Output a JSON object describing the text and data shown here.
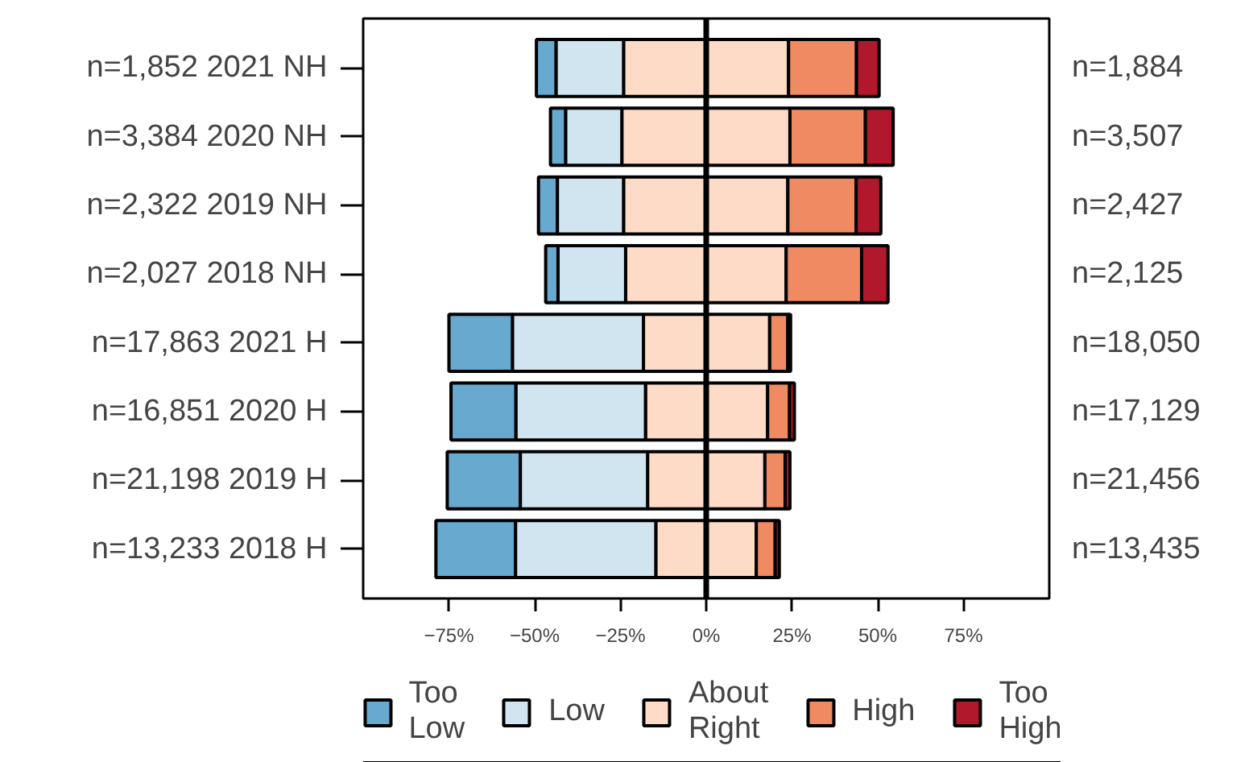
{
  "chart_data": {
    "type": "bar",
    "orientation": "horizontal",
    "stacked": true,
    "categories": [
      "n=1,852  2021 NH",
      "n=3,384  2020 NH",
      "n=2,322  2019 NH",
      "n=2,027  2018 NH",
      "n=17,863  2021 H",
      "n=16,851  2020 H",
      "n=21,198  2019 H",
      "n=13,233  2018 H"
    ],
    "series": [
      {
        "color": "#fddbc7",
        "values": [
          -24.1,
          -24.6,
          -24.1,
          -23.5,
          -18.3,
          -17.7,
          -17.1,
          -14.7
        ]
      },
      {
        "name": "About Right",
        "color": "#fddbc7",
        "values": [
          24.0,
          24.4,
          23.8,
          23.3,
          18.5,
          17.9,
          17.1,
          14.6
        ]
      },
      {
        "name": "Low",
        "color": "#d1e5f0",
        "values": [
          -19.7,
          -16.4,
          -19.3,
          -19.7,
          -38.2,
          -37.8,
          -37.1,
          -40.9
        ]
      },
      {
        "name": "High",
        "color": "#ef8a62",
        "values": [
          19.8,
          22.0,
          19.9,
          22.0,
          5.3,
          6.4,
          5.9,
          5.5
        ]
      },
      {
        "name": "Too Low",
        "color": "#67a9cf",
        "values": [
          -5.7,
          -4.4,
          -5.5,
          -3.6,
          -18.5,
          -18.9,
          -21.3,
          -23.2
        ]
      },
      {
        "name": "Too High",
        "color": "#b2182b",
        "values": [
          6.6,
          8.1,
          7.2,
          7.7,
          0.8,
          1.4,
          1.4,
          1.2
        ]
      }
    ],
    "xlim": [
      -100,
      100
    ],
    "xticks": [
      {
        "value": -75,
        "label": "−75%"
      },
      {
        "value": -50,
        "label": "−50%"
      },
      {
        "value": -25,
        "label": "−25%"
      },
      {
        "value": 0,
        "label": "0%"
      },
      {
        "value": 25,
        "label": "25%"
      },
      {
        "value": 50,
        "label": "50%"
      },
      {
        "value": 75,
        "label": "75%"
      }
    ],
    "ref_lines": [
      {
        "axis": "x",
        "value": 0,
        "color": "#000000"
      }
    ],
    "annotations": [
      "n=1,884",
      "n=3,507",
      "n=2,427",
      "n=2,125",
      "n=18,050",
      "n=17,129",
      "n=21,456",
      "n=13,435"
    ],
    "grid": false,
    "legend": "bottom"
  }
}
